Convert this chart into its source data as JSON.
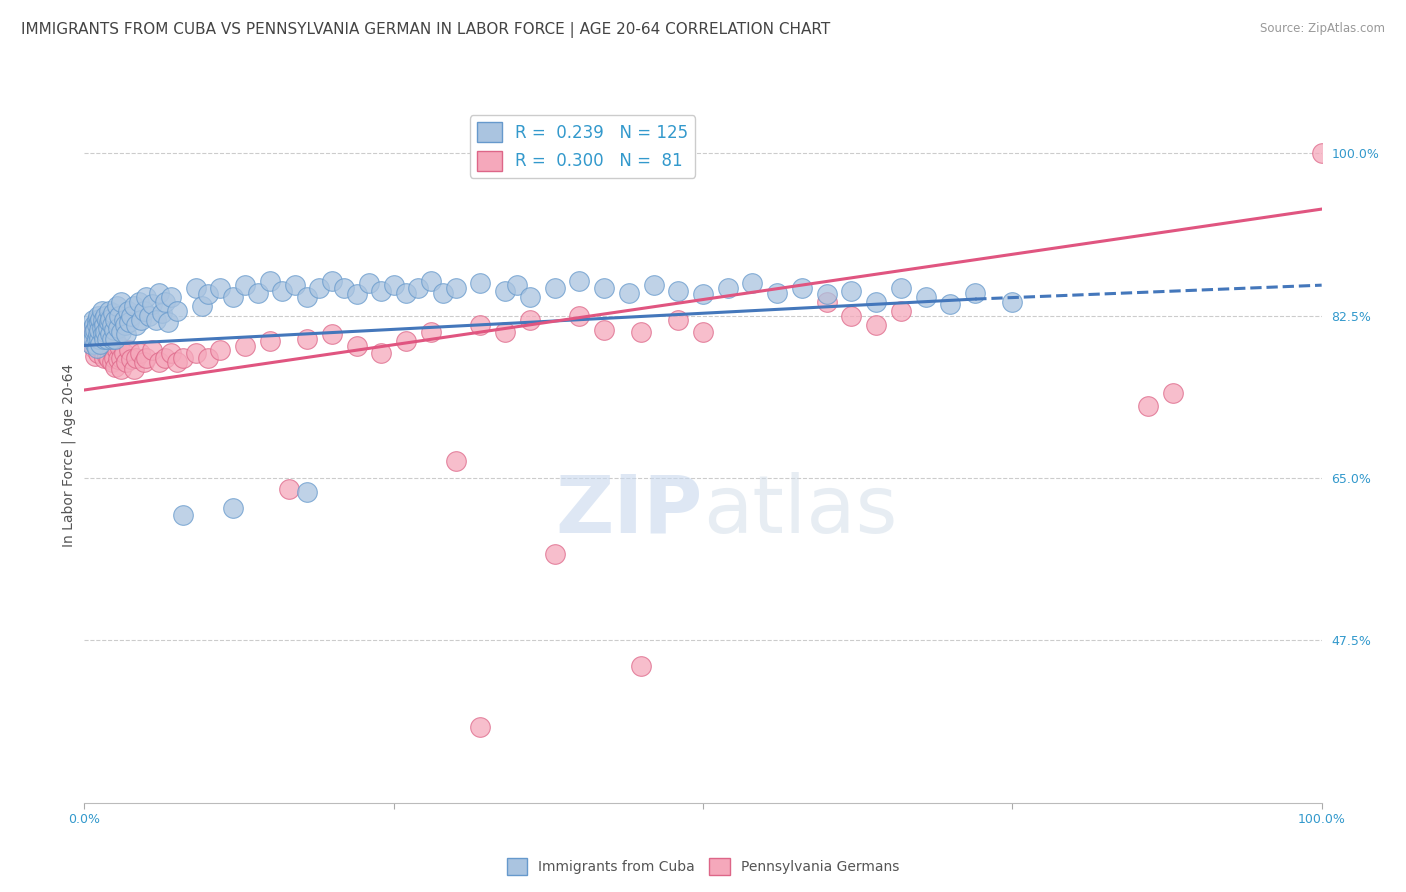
{
  "title": "IMMIGRANTS FROM CUBA VS PENNSYLVANIA GERMAN IN LABOR FORCE | AGE 20-64 CORRELATION CHART",
  "source": "Source: ZipAtlas.com",
  "ylabel": "In Labor Force | Age 20-64",
  "watermark_zip": "ZIP",
  "watermark_atlas": "atlas",
  "right_ytick_labels": [
    "100.0%",
    "82.5%",
    "65.0%",
    "47.5%"
  ],
  "right_ytick_values": [
    1.0,
    0.825,
    0.65,
    0.475
  ],
  "xlim": [
    0.0,
    1.0
  ],
  "ylim": [
    0.3,
    1.05
  ],
  "blue_line": {
    "x0": 0.0,
    "y0": 0.793,
    "x1": 0.72,
    "y1": 0.843,
    "x1_dash": 1.0,
    "y1_dash": 0.858
  },
  "pink_line": {
    "x0": 0.0,
    "y0": 0.745,
    "x1": 1.0,
    "y1": 0.94
  },
  "blue_color": "#aac4e0",
  "blue_edge": "#6699cc",
  "blue_line_color": "#4477bb",
  "pink_color": "#f5a8bb",
  "pink_edge": "#dd6688",
  "pink_line_color": "#e05580",
  "grid_color": "#cccccc",
  "background_color": "#ffffff",
  "title_fontsize": 11,
  "axis_label_fontsize": 10,
  "tick_fontsize": 9,
  "legend_fontsize": 12,
  "series_blue_points": [
    [
      0.005,
      0.81
    ],
    [
      0.005,
      0.795
    ],
    [
      0.007,
      0.82
    ],
    [
      0.007,
      0.8
    ],
    [
      0.008,
      0.815
    ],
    [
      0.008,
      0.808
    ],
    [
      0.009,
      0.795
    ],
    [
      0.009,
      0.81
    ],
    [
      0.01,
      0.82
    ],
    [
      0.01,
      0.8
    ],
    [
      0.01,
      0.815
    ],
    [
      0.01,
      0.79
    ],
    [
      0.011,
      0.825
    ],
    [
      0.011,
      0.805
    ],
    [
      0.012,
      0.818
    ],
    [
      0.012,
      0.8
    ],
    [
      0.012,
      0.81
    ],
    [
      0.013,
      0.822
    ],
    [
      0.013,
      0.795
    ],
    [
      0.014,
      0.812
    ],
    [
      0.014,
      0.83
    ],
    [
      0.015,
      0.805
    ],
    [
      0.015,
      0.82
    ],
    [
      0.016,
      0.8
    ],
    [
      0.016,
      0.815
    ],
    [
      0.017,
      0.825
    ],
    [
      0.017,
      0.808
    ],
    [
      0.018,
      0.82
    ],
    [
      0.018,
      0.8
    ],
    [
      0.019,
      0.812
    ],
    [
      0.02,
      0.83
    ],
    [
      0.02,
      0.818
    ],
    [
      0.021,
      0.805
    ],
    [
      0.021,
      0.822
    ],
    [
      0.022,
      0.8
    ],
    [
      0.022,
      0.815
    ],
    [
      0.023,
      0.828
    ],
    [
      0.024,
      0.81
    ],
    [
      0.025,
      0.82
    ],
    [
      0.025,
      0.8
    ],
    [
      0.026,
      0.835
    ],
    [
      0.027,
      0.812
    ],
    [
      0.028,
      0.825
    ],
    [
      0.03,
      0.808
    ],
    [
      0.03,
      0.84
    ],
    [
      0.032,
      0.82
    ],
    [
      0.033,
      0.815
    ],
    [
      0.034,
      0.805
    ],
    [
      0.035,
      0.83
    ],
    [
      0.036,
      0.818
    ],
    [
      0.038,
      0.825
    ],
    [
      0.04,
      0.835
    ],
    [
      0.042,
      0.815
    ],
    [
      0.044,
      0.84
    ],
    [
      0.046,
      0.82
    ],
    [
      0.048,
      0.83
    ],
    [
      0.05,
      0.845
    ],
    [
      0.052,
      0.825
    ],
    [
      0.055,
      0.838
    ],
    [
      0.058,
      0.82
    ],
    [
      0.06,
      0.85
    ],
    [
      0.063,
      0.828
    ],
    [
      0.065,
      0.84
    ],
    [
      0.068,
      0.818
    ],
    [
      0.07,
      0.845
    ],
    [
      0.075,
      0.83
    ],
    [
      0.08,
      0.61
    ],
    [
      0.09,
      0.855
    ],
    [
      0.095,
      0.835
    ],
    [
      0.1,
      0.848
    ],
    [
      0.11,
      0.855
    ],
    [
      0.12,
      0.845
    ],
    [
      0.13,
      0.858
    ],
    [
      0.14,
      0.85
    ],
    [
      0.15,
      0.862
    ],
    [
      0.16,
      0.852
    ],
    [
      0.17,
      0.858
    ],
    [
      0.18,
      0.845
    ],
    [
      0.19,
      0.855
    ],
    [
      0.2,
      0.862
    ],
    [
      0.21,
      0.855
    ],
    [
      0.22,
      0.848
    ],
    [
      0.23,
      0.86
    ],
    [
      0.24,
      0.852
    ],
    [
      0.25,
      0.858
    ],
    [
      0.26,
      0.85
    ],
    [
      0.27,
      0.855
    ],
    [
      0.28,
      0.862
    ],
    [
      0.29,
      0.85
    ],
    [
      0.3,
      0.855
    ],
    [
      0.32,
      0.86
    ],
    [
      0.34,
      0.852
    ],
    [
      0.35,
      0.858
    ],
    [
      0.36,
      0.845
    ],
    [
      0.38,
      0.855
    ],
    [
      0.4,
      0.862
    ],
    [
      0.42,
      0.855
    ],
    [
      0.44,
      0.85
    ],
    [
      0.46,
      0.858
    ],
    [
      0.48,
      0.852
    ],
    [
      0.5,
      0.848
    ],
    [
      0.52,
      0.855
    ],
    [
      0.54,
      0.86
    ],
    [
      0.56,
      0.85
    ],
    [
      0.58,
      0.855
    ],
    [
      0.6,
      0.848
    ],
    [
      0.62,
      0.852
    ],
    [
      0.64,
      0.84
    ],
    [
      0.66,
      0.855
    ],
    [
      0.68,
      0.845
    ],
    [
      0.7,
      0.838
    ],
    [
      0.12,
      0.618
    ],
    [
      0.18,
      0.635
    ],
    [
      0.72,
      0.85
    ],
    [
      0.75,
      0.84
    ]
  ],
  "series_pink_points": [
    [
      0.005,
      0.805
    ],
    [
      0.006,
      0.795
    ],
    [
      0.007,
      0.812
    ],
    [
      0.007,
      0.8
    ],
    [
      0.008,
      0.808
    ],
    [
      0.008,
      0.79
    ],
    [
      0.009,
      0.798
    ],
    [
      0.009,
      0.782
    ],
    [
      0.01,
      0.805
    ],
    [
      0.01,
      0.792
    ],
    [
      0.011,
      0.8
    ],
    [
      0.011,
      0.785
    ],
    [
      0.012,
      0.808
    ],
    [
      0.012,
      0.795
    ],
    [
      0.013,
      0.802
    ],
    [
      0.013,
      0.79
    ],
    [
      0.014,
      0.796
    ],
    [
      0.015,
      0.805
    ],
    [
      0.015,
      0.788
    ],
    [
      0.016,
      0.8
    ],
    [
      0.016,
      0.78
    ],
    [
      0.017,
      0.795
    ],
    [
      0.018,
      0.782
    ],
    [
      0.018,
      0.8
    ],
    [
      0.019,
      0.792
    ],
    [
      0.02,
      0.805
    ],
    [
      0.02,
      0.778
    ],
    [
      0.021,
      0.798
    ],
    [
      0.022,
      0.788
    ],
    [
      0.022,
      0.775
    ],
    [
      0.023,
      0.792
    ],
    [
      0.024,
      0.78
    ],
    [
      0.025,
      0.795
    ],
    [
      0.025,
      0.77
    ],
    [
      0.026,
      0.788
    ],
    [
      0.027,
      0.778
    ],
    [
      0.028,
      0.792
    ],
    [
      0.03,
      0.78
    ],
    [
      0.03,
      0.768
    ],
    [
      0.032,
      0.785
    ],
    [
      0.034,
      0.775
    ],
    [
      0.036,
      0.788
    ],
    [
      0.038,
      0.778
    ],
    [
      0.04,
      0.768
    ],
    [
      0.042,
      0.78
    ],
    [
      0.045,
      0.785
    ],
    [
      0.048,
      0.775
    ],
    [
      0.05,
      0.78
    ],
    [
      0.055,
      0.788
    ],
    [
      0.06,
      0.775
    ],
    [
      0.065,
      0.78
    ],
    [
      0.07,
      0.785
    ],
    [
      0.075,
      0.775
    ],
    [
      0.08,
      0.78
    ],
    [
      0.09,
      0.785
    ],
    [
      0.1,
      0.78
    ],
    [
      0.11,
      0.788
    ],
    [
      0.13,
      0.792
    ],
    [
      0.15,
      0.798
    ],
    [
      0.165,
      0.638
    ],
    [
      0.18,
      0.8
    ],
    [
      0.2,
      0.805
    ],
    [
      0.22,
      0.792
    ],
    [
      0.24,
      0.785
    ],
    [
      0.26,
      0.798
    ],
    [
      0.28,
      0.808
    ],
    [
      0.3,
      0.668
    ],
    [
      0.32,
      0.815
    ],
    [
      0.34,
      0.808
    ],
    [
      0.36,
      0.82
    ],
    [
      0.38,
      0.568
    ],
    [
      0.4,
      0.825
    ],
    [
      0.42,
      0.81
    ],
    [
      0.45,
      0.808
    ],
    [
      0.48,
      0.82
    ],
    [
      0.5,
      0.808
    ],
    [
      0.33,
      0.985
    ],
    [
      0.34,
      1.0
    ],
    [
      0.6,
      0.84
    ],
    [
      0.62,
      0.825
    ],
    [
      0.64,
      0.815
    ],
    [
      0.66,
      0.83
    ],
    [
      0.45,
      0.448
    ],
    [
      0.32,
      0.382
    ],
    [
      0.86,
      0.728
    ],
    [
      0.88,
      0.742
    ],
    [
      1.0,
      1.0
    ]
  ]
}
